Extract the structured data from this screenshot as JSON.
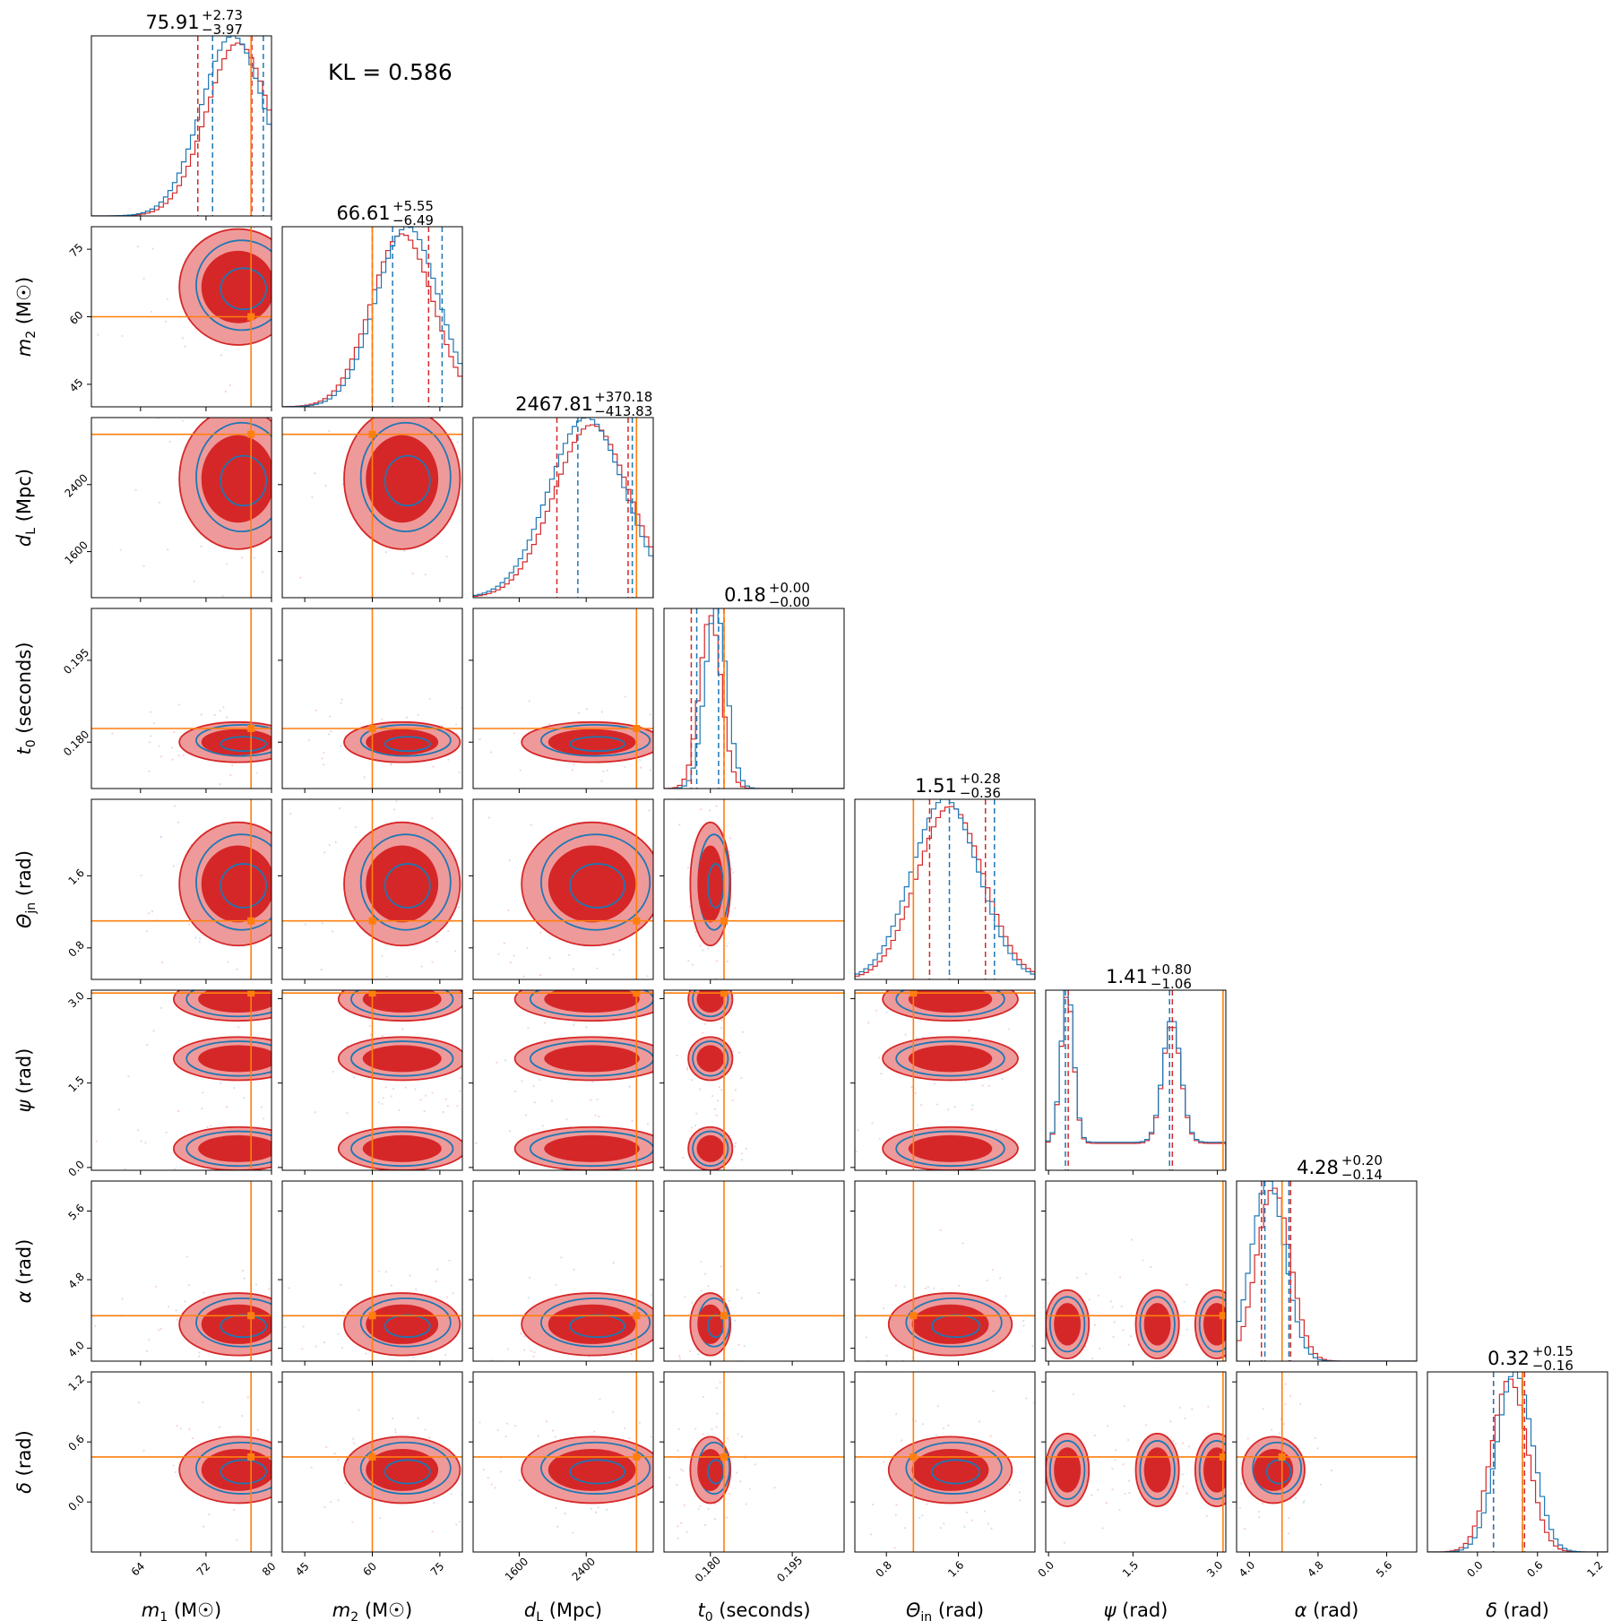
{
  "kl_text": "KL = 0.586",
  "chart_data": {
    "type": "corner",
    "colors": {
      "model_a": "#d62728",
      "model_b": "#1f77b4",
      "truth": "#ff7f0e",
      "fill_dark": "#d62728",
      "fill_light": "#ef9a9a"
    },
    "parameters": [
      {
        "key": "m1",
        "label_tex": [
          "m",
          "1",
          "M☉"
        ],
        "xlabel": "m₁ (M☉)",
        "ylabel": "",
        "range": [
          58,
          80
        ],
        "ticks": [
          64,
          72,
          80
        ],
        "tick_labels": [
          "64",
          "72",
          "80"
        ],
        "truth": 77.5,
        "mean": 75.91,
        "plus": "+2.73",
        "minus": "−3.97",
        "title_main": "75.91",
        "q_red": [
          71,
          77.6
        ],
        "q_blue": [
          72.8,
          79
        ]
      },
      {
        "key": "m2",
        "label_tex": [
          "m",
          "2",
          "M☉"
        ],
        "xlabel": "m₂ (M☉)",
        "ylabel": "m₂ (M☉)",
        "range": [
          40,
          80
        ],
        "ticks": [
          45,
          60,
          75
        ],
        "tick_labels": [
          "45",
          "60",
          "75"
        ],
        "truth": 60,
        "mean": 66.61,
        "plus": "+5.55",
        "minus": "−6.49",
        "title_main": "66.61",
        "q_red": [
          60,
          72.5
        ],
        "q_blue": [
          64.5,
          75.5
        ]
      },
      {
        "key": "dL",
        "label_tex": [
          "d",
          "L",
          "Mpc"
        ],
        "xlabel": "d_L (Mpc)",
        "ylabel": "d_L (Mpc)",
        "range": [
          1050,
          3200
        ],
        "ticks": [
          1600,
          2400
        ],
        "tick_labels": [
          "1600",
          "2400"
        ],
        "truth": 3000,
        "mean": 2467.81,
        "plus": "+370.18",
        "minus": "−413.83",
        "title_main": "2467.81",
        "q_red": [
          2050,
          2900
        ],
        "q_blue": [
          2300,
          2950
        ]
      },
      {
        "key": "t0",
        "label_tex": [
          "t",
          "0",
          "seconds"
        ],
        "xlabel": "t₀ (seconds)",
        "ylabel": "t₀ (seconds)",
        "range": [
          0.1715,
          0.2045
        ],
        "ticks": [
          0.18,
          0.195
        ],
        "tick_labels": [
          "0.180",
          "0.195"
        ],
        "truth": 0.1825,
        "mean": 0.18,
        "plus": "+0.00",
        "minus": "−0.00",
        "title_main": "0.18",
        "q_red": [
          0.1765,
          0.1825
        ],
        "q_blue": [
          0.1775,
          0.1815
        ]
      },
      {
        "key": "theta",
        "label_tex": [
          "Θ",
          "jn",
          "rad"
        ],
        "xlabel": "Θ_jn (rad)",
        "ylabel": "Θ_jn (rad)",
        "range": [
          0.45,
          2.45
        ],
        "ticks": [
          0.8,
          1.6
        ],
        "tick_labels": [
          "0.8",
          "1.6"
        ],
        "truth": 1.1,
        "mean": 1.51,
        "plus": "+0.28",
        "minus": "−0.36",
        "title_main": "1.51",
        "q_red": [
          1.28,
          1.9
        ],
        "q_blue": [
          1.5,
          2.0
        ]
      },
      {
        "key": "psi",
        "label_tex": [
          "ψ",
          "",
          "rad"
        ],
        "xlabel": "ψ (rad)",
        "ylabel": "ψ (rad)",
        "range": [
          -0.05,
          3.15
        ],
        "ticks": [
          0.0,
          1.5,
          3.0
        ],
        "tick_labels": [
          "0.0",
          "1.5",
          "3.0"
        ],
        "truth": 3.1,
        "mean": 1.41,
        "plus": "+0.80",
        "minus": "−1.06",
        "title_main": "1.41",
        "q_red": [
          0.35,
          2.2
        ],
        "q_blue": [
          0.3,
          2.15
        ]
      },
      {
        "key": "alpha",
        "label_tex": [
          "α",
          "",
          "rad"
        ],
        "xlabel": "α (rad)",
        "ylabel": "α (rad)",
        "range": [
          3.85,
          5.95
        ],
        "ticks": [
          4.0,
          4.8,
          5.6
        ],
        "tick_labels": [
          "4.0",
          "4.8",
          "5.6"
        ],
        "truth": 4.38,
        "mean": 4.28,
        "plus": "+0.20",
        "minus": "−0.14",
        "title_main": "4.28",
        "q_red": [
          4.14,
          4.48
        ],
        "q_blue": [
          4.18,
          4.46
        ]
      },
      {
        "key": "delta",
        "label_tex": [
          "δ",
          "",
          "rad"
        ],
        "xlabel": "δ (rad)",
        "ylabel": "δ (rad)",
        "range": [
          -0.5,
          1.3
        ],
        "ticks": [
          0.0,
          0.6,
          1.2
        ],
        "tick_labels": [
          "0.0",
          "0.6",
          "1.2"
        ],
        "truth": 0.45,
        "mean": 0.32,
        "plus": "+0.15",
        "minus": "−0.16",
        "title_main": "0.32",
        "q_red": [
          0.16,
          0.47
        ],
        "q_blue": [
          0.16,
          0.45
        ]
      }
    ],
    "legend": "none",
    "grid": false
  }
}
